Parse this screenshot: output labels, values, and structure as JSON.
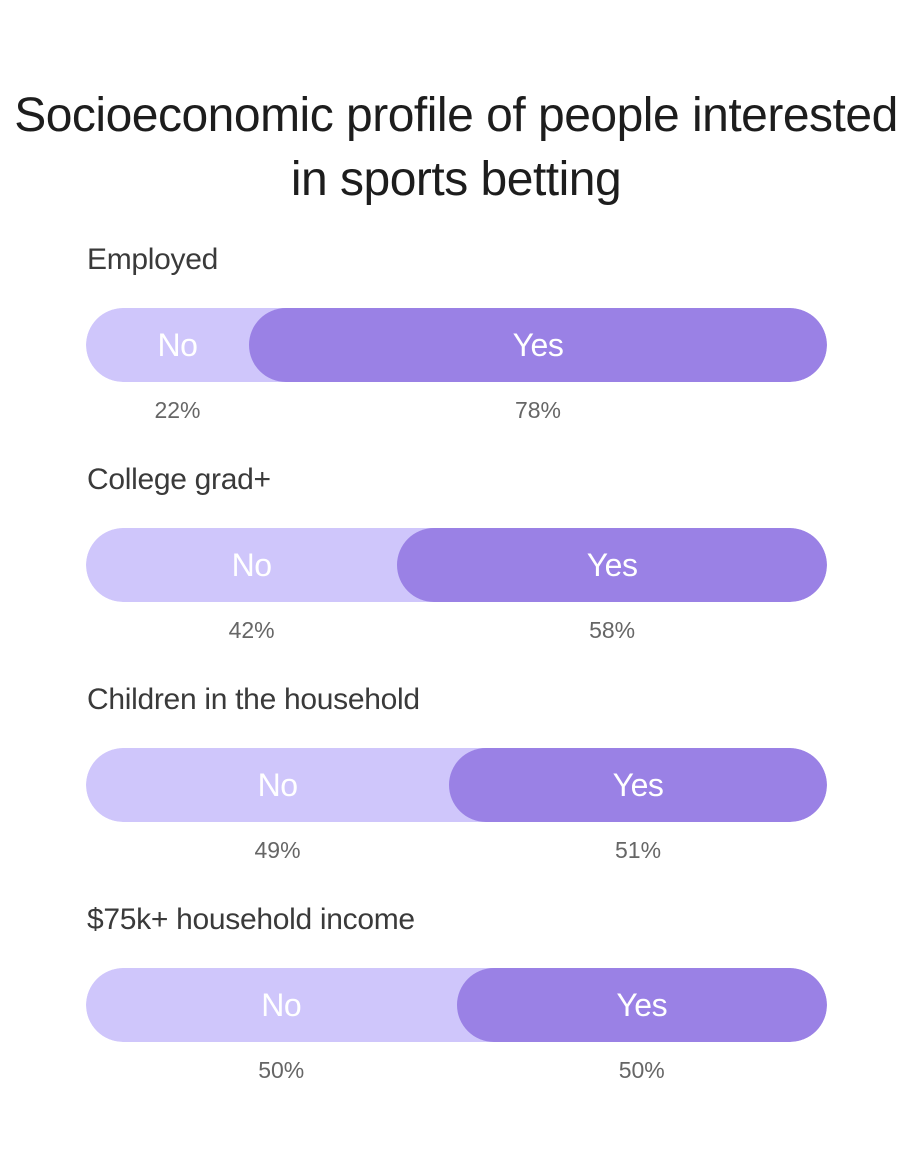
{
  "title": "Socioeconomic profile of people interested in sports betting",
  "colors": {
    "no": "#cfc6fb",
    "yes": "#9a81e5"
  },
  "chart_data": {
    "type": "bar",
    "stacked": true,
    "orientation": "horizontal",
    "title": "Socioeconomic profile of people interested in sports betting",
    "categories": [
      "Employed",
      "College grad+",
      "Children in the household",
      "$75k+ household income"
    ],
    "series": [
      {
        "name": "No",
        "values": [
          22,
          42,
          49,
          50
        ],
        "labels": [
          "22%",
          "42%",
          "49%",
          "50%"
        ]
      },
      {
        "name": "Yes",
        "values": [
          78,
          58,
          51,
          50
        ],
        "labels": [
          "78%",
          "58%",
          "51%",
          "50%"
        ]
      }
    ],
    "xlim": [
      0,
      100
    ],
    "grid": false,
    "legend": "none"
  }
}
